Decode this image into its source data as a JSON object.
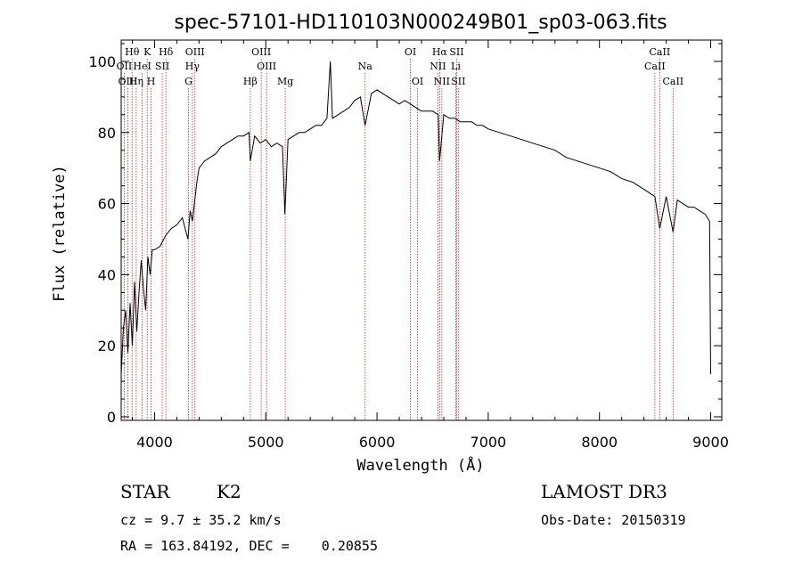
{
  "chart_data": {
    "type": "line",
    "title": "spec-57101-HD110103N000249B01_sp03-063.fits",
    "xlabel": "Wavelength (Å)",
    "ylabel": "Flux (relative)",
    "xlim": [
      3700,
      9100
    ],
    "ylim": [
      -1,
      106
    ],
    "xticks": [
      4000,
      5000,
      6000,
      7000,
      8000,
      9000
    ],
    "yticks": [
      0,
      20,
      40,
      60,
      80,
      100
    ],
    "grid": false,
    "series": [
      {
        "x": [
          3700,
          3720,
          3740,
          3760,
          3780,
          3800,
          3820,
          3840,
          3860,
          3880,
          3900,
          3920,
          3940,
          3960,
          3980,
          4000,
          4050,
          4100,
          4150,
          4200,
          4250,
          4300,
          4320,
          4340,
          4380,
          4400,
          4450,
          4500,
          4550,
          4600,
          4650,
          4700,
          4750,
          4800,
          4850,
          4861,
          4900,
          4950,
          5000,
          5050,
          5100,
          5150,
          5172,
          5200,
          5250,
          5300,
          5350,
          5400,
          5450,
          5500,
          5550,
          5580,
          5600,
          5650,
          5700,
          5750,
          5800,
          5850,
          5893,
          5950,
          6000,
          6050,
          6100,
          6150,
          6200,
          6250,
          6300,
          6350,
          6400,
          6450,
          6500,
          6550,
          6563,
          6600,
          6650,
          6700,
          6750,
          6800,
          6850,
          6900,
          6950,
          7000,
          7100,
          7200,
          7300,
          7400,
          7500,
          7600,
          7700,
          7800,
          7900,
          8000,
          8100,
          8200,
          8300,
          8400,
          8498,
          8542,
          8600,
          8662,
          8700,
          8750,
          8800,
          8850,
          8900,
          8950,
          8990,
          9000
        ],
        "y": [
          12,
          25,
          30,
          18,
          32,
          20,
          38,
          24,
          35,
          44,
          36,
          30,
          45,
          40,
          47,
          47,
          48,
          51,
          53,
          54,
          56,
          50,
          58,
          55,
          66,
          70,
          72,
          73,
          74,
          76,
          77,
          78,
          79,
          79,
          80,
          72,
          79,
          77,
          78,
          76,
          77,
          76,
          57,
          78,
          79,
          80,
          80,
          81,
          82,
          82,
          84,
          100,
          84,
          85,
          86,
          87,
          89,
          90,
          82,
          91,
          92,
          91,
          90,
          89,
          88,
          89,
          88,
          87,
          86,
          86,
          86,
          85,
          72,
          85,
          84,
          84,
          83,
          83,
          83,
          82,
          82,
          81,
          80,
          79,
          78,
          77,
          76,
          75,
          73,
          72,
          71,
          70,
          69,
          67,
          66,
          64,
          62,
          53,
          62,
          52,
          61,
          60,
          59,
          59,
          58,
          57,
          55,
          12
        ]
      }
    ],
    "lines": [
      {
        "label": "Hθ",
        "x": 3798,
        "row": 1
      },
      {
        "label": "OII",
        "x": 3727,
        "row": 2
      },
      {
        "label": "OIII",
        "x": 3760,
        "row": 3
      },
      {
        "label": "K",
        "x": 3934,
        "row": 1
      },
      {
        "label": "HeI",
        "x": 3889,
        "row": 2
      },
      {
        "label": "Hη",
        "x": 3835,
        "row": 3
      },
      {
        "label": "SII",
        "x": 4069,
        "row": 2
      },
      {
        "label": "H",
        "x": 3969,
        "row": 3
      },
      {
        "label": "Hδ",
        "x": 4102,
        "row": 1
      },
      {
        "label": "OIII",
        "x": 4363,
        "row": 1
      },
      {
        "label": "Hγ",
        "x": 4340,
        "row": 2
      },
      {
        "label": "G",
        "x": 4305,
        "row": 3
      },
      {
        "label": "OIII",
        "x": 4959,
        "row": 1
      },
      {
        "label": "OIII",
        "x": 5007,
        "row": 2
      },
      {
        "label": "Hβ",
        "x": 4861,
        "row": 3
      },
      {
        "label": "Mg",
        "x": 5175,
        "row": 3
      },
      {
        "label": "Na",
        "x": 5893,
        "row": 2
      },
      {
        "label": "OI",
        "x": 6300,
        "row": 1
      },
      {
        "label": "OI",
        "x": 6364,
        "row": 3
      },
      {
        "label": "Hα",
        "x": 6563,
        "row": 1
      },
      {
        "label": "NII",
        "x": 6548,
        "row": 2
      },
      {
        "label": "NII",
        "x": 6583,
        "row": 3
      },
      {
        "label": "SII",
        "x": 6716,
        "row": 1
      },
      {
        "label": "Li",
        "x": 6708,
        "row": 2
      },
      {
        "label": "SII",
        "x": 6731,
        "row": 3
      },
      {
        "label": "CaII",
        "x": 8542,
        "row": 1
      },
      {
        "label": "CaII",
        "x": 8498,
        "row": 2
      },
      {
        "label": "CaII",
        "x": 8662,
        "row": 3
      }
    ]
  },
  "info": {
    "class": "STAR",
    "subclass": "K2",
    "survey": "LAMOST DR3",
    "cz": "cz = 9.7 ± 35.2 km/s",
    "obs_date": "Obs-Date: 20150319",
    "coords": "RA = 163.84192, DEC =    0.20855"
  }
}
